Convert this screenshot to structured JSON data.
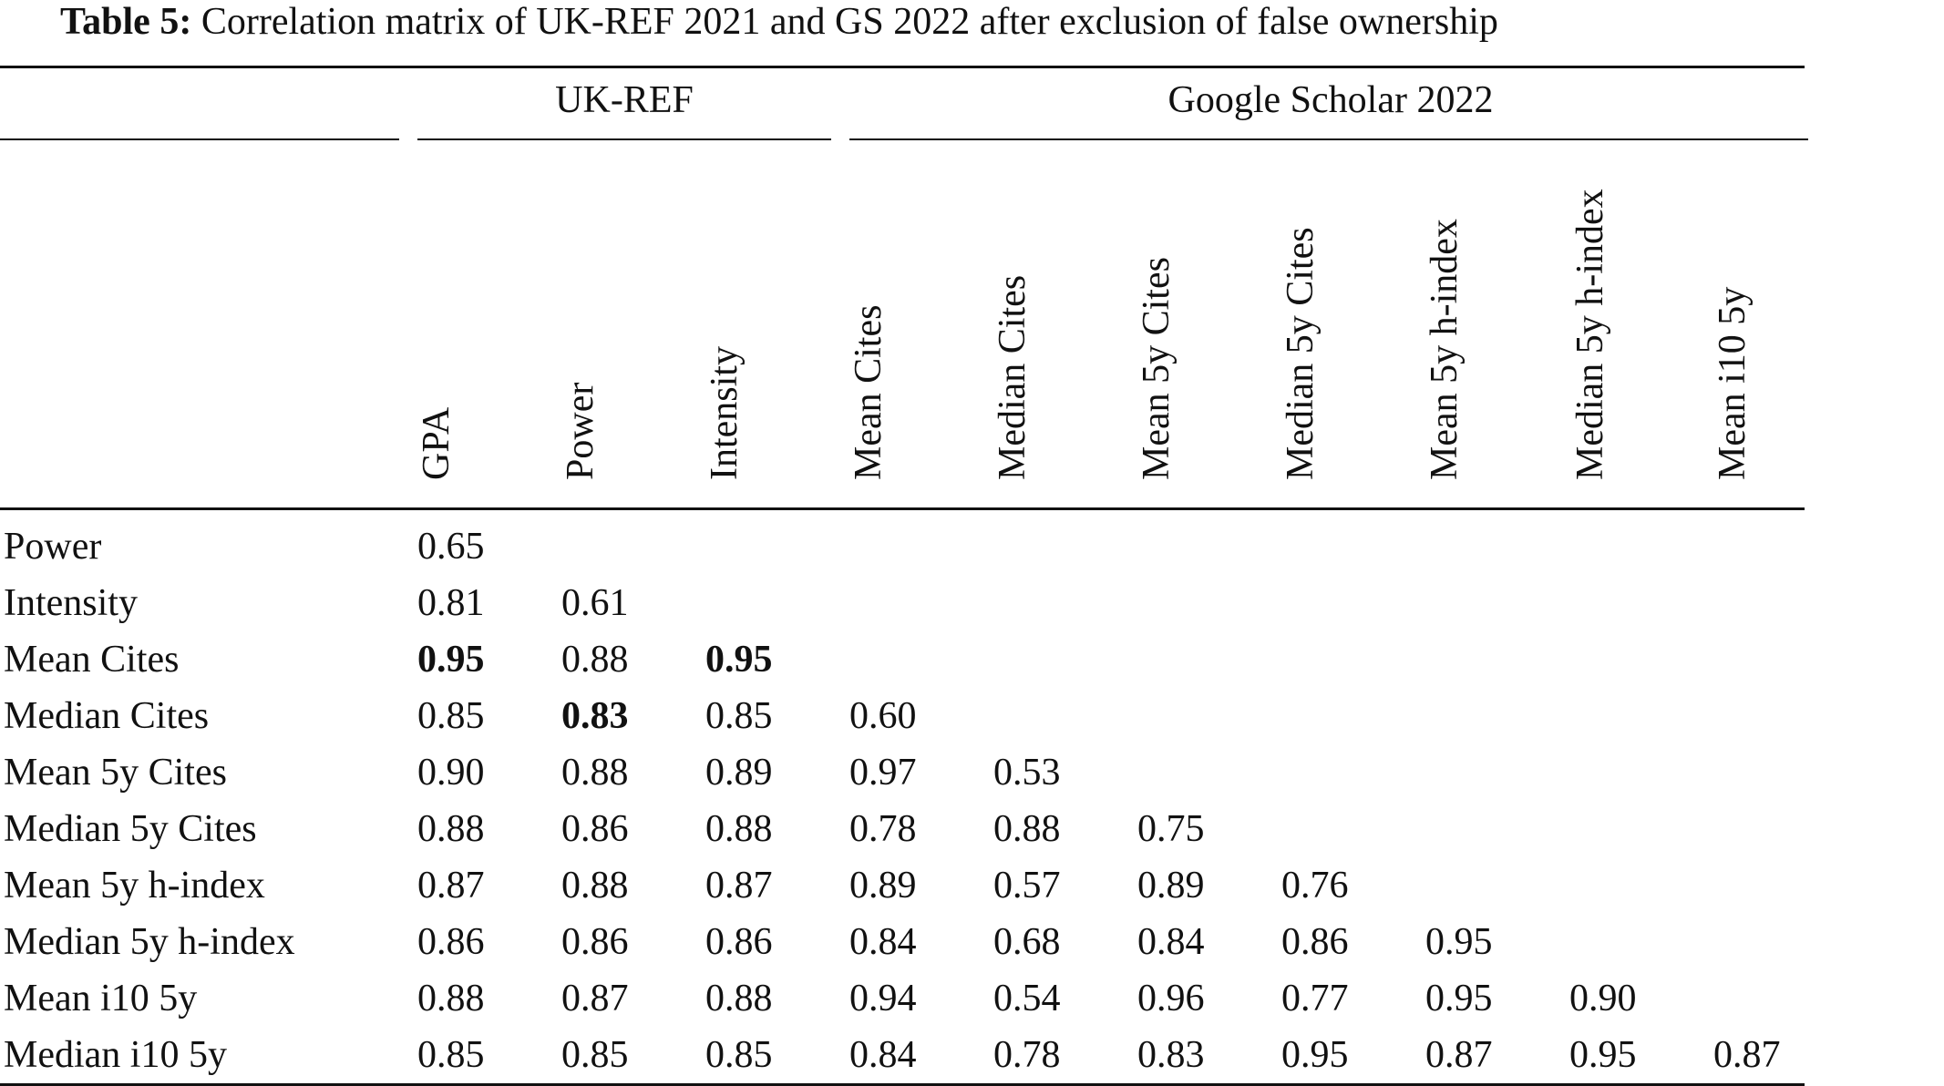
{
  "caption": {
    "label": "Table 5:",
    "text": "Correlation matrix of UK-REF 2021 and GS 2022 after exclusion of false ownership"
  },
  "groups": {
    "ukref": "UK-REF",
    "gs": "Google Scholar 2022"
  },
  "columns": [
    "GPA",
    "Power",
    "Intensity",
    "Mean Cites",
    "Median Cites",
    "Mean 5y Cites",
    "Median 5y Cites",
    "Mean 5y h-index",
    "Median 5y h-index",
    "Mean i10 5y"
  ],
  "rows": [
    {
      "label": "Power",
      "values": [
        "0.65"
      ],
      "bold": []
    },
    {
      "label": "Intensity",
      "values": [
        "0.81",
        "0.61"
      ],
      "bold": []
    },
    {
      "label": "Mean Cites",
      "values": [
        "0.95",
        "0.88",
        "0.95"
      ],
      "bold": [
        0,
        2
      ]
    },
    {
      "label": "Median Cites",
      "values": [
        "0.85",
        "0.83",
        "0.85",
        "0.60"
      ],
      "bold": [
        1
      ]
    },
    {
      "label": "Mean 5y Cites",
      "values": [
        "0.90",
        "0.88",
        "0.89",
        "0.97",
        "0.53"
      ],
      "bold": []
    },
    {
      "label": "Median 5y Cites",
      "values": [
        "0.88",
        "0.86",
        "0.88",
        "0.78",
        "0.88",
        "0.75"
      ],
      "bold": []
    },
    {
      "label": "Mean 5y h-index",
      "values": [
        "0.87",
        "0.88",
        "0.87",
        "0.89",
        "0.57",
        "0.89",
        "0.76"
      ],
      "bold": []
    },
    {
      "label": "Median 5y h-index",
      "values": [
        "0.86",
        "0.86",
        "0.86",
        "0.84",
        "0.68",
        "0.84",
        "0.86",
        "0.95"
      ],
      "bold": []
    },
    {
      "label": "Mean i10 5y",
      "values": [
        "0.88",
        "0.87",
        "0.88",
        "0.94",
        "0.54",
        "0.96",
        "0.77",
        "0.95",
        "0.90"
      ],
      "bold": []
    },
    {
      "label": "Median i10 5y",
      "values": [
        "0.85",
        "0.85",
        "0.85",
        "0.84",
        "0.78",
        "0.83",
        "0.95",
        "0.87",
        "0.95",
        "0.87"
      ],
      "bold": []
    }
  ]
}
